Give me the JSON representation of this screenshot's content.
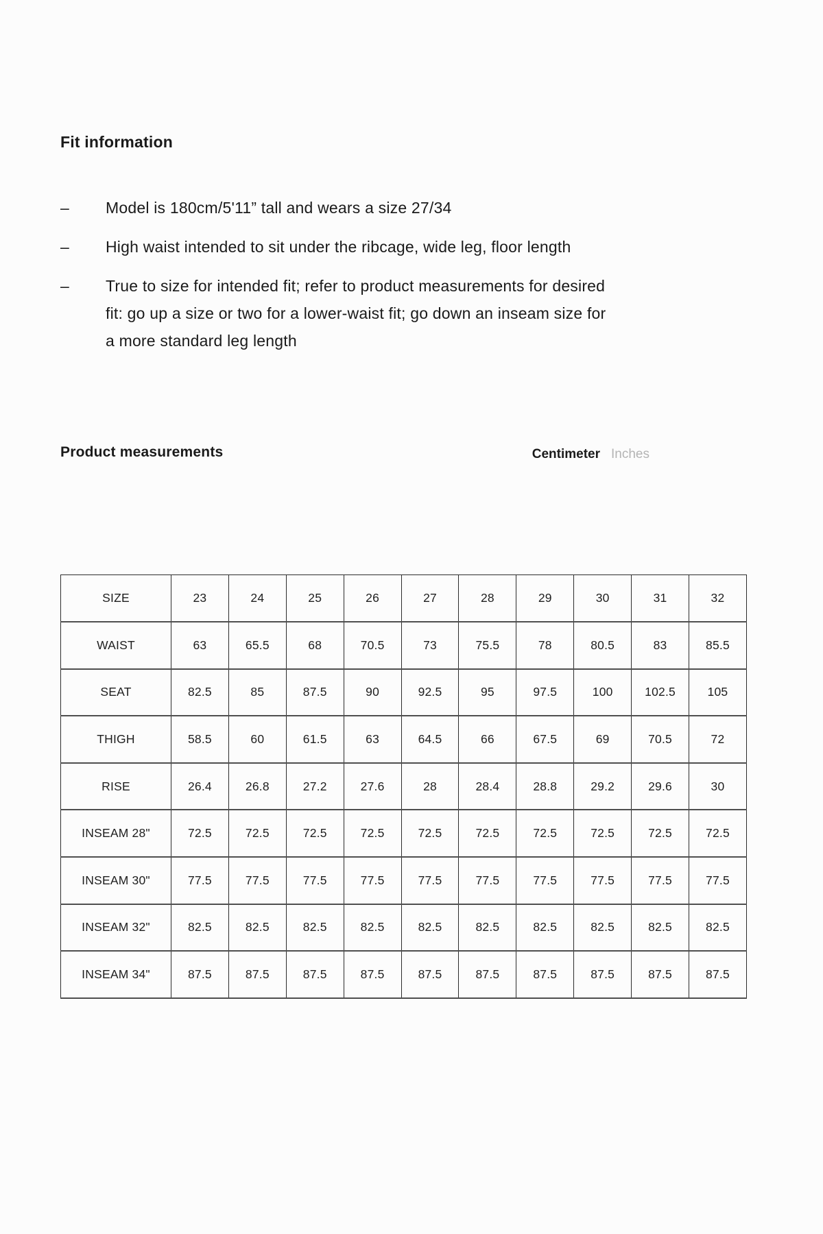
{
  "page": {
    "background": "#fcfcfc",
    "text_color": "#1a1a1a"
  },
  "fit_info": {
    "title": "Fit information",
    "bullet_char": "–",
    "bullets": [
      "Model is 180cm/5'11” tall and wears a size 27/34",
      "High waist intended to sit under the ribcage, wide leg, floor length",
      "True to size for intended fit; refer to product measurements for desired fit: go up a size or two for a lower-waist fit; go down an inseam size for a more standard leg length"
    ]
  },
  "measurements": {
    "title": "Product measurements",
    "unit_toggle": {
      "active_label": "Centimeter",
      "inactive_label": "Inches",
      "active_color": "#1a1a1a",
      "inactive_color": "#b4b4b4"
    },
    "table": {
      "rows": [
        {
          "label": "SIZE",
          "values": [
            "23",
            "24",
            "25",
            "26",
            "27",
            "28",
            "29",
            "30",
            "31",
            "32"
          ]
        },
        {
          "label": "WAIST",
          "values": [
            "63",
            "65.5",
            "68",
            "70.5",
            "73",
            "75.5",
            "78",
            "80.5",
            "83",
            "85.5"
          ]
        },
        {
          "label": "SEAT",
          "values": [
            "82.5",
            "85",
            "87.5",
            "90",
            "92.5",
            "95",
            "97.5",
            "100",
            "102.5",
            "105"
          ]
        },
        {
          "label": "THIGH",
          "values": [
            "58.5",
            "60",
            "61.5",
            "63",
            "64.5",
            "66",
            "67.5",
            "69",
            "70.5",
            "72"
          ]
        },
        {
          "label": "RISE",
          "values": [
            "26.4",
            "26.8",
            "27.2",
            "27.6",
            "28",
            "28.4",
            "28.8",
            "29.2",
            "29.6",
            "30"
          ]
        },
        {
          "label": "INSEAM 28\"",
          "values": [
            "72.5",
            "72.5",
            "72.5",
            "72.5",
            "72.5",
            "72.5",
            "72.5",
            "72.5",
            "72.5",
            "72.5"
          ]
        },
        {
          "label": "INSEAM 30\"",
          "values": [
            "77.5",
            "77.5",
            "77.5",
            "77.5",
            "77.5",
            "77.5",
            "77.5",
            "77.5",
            "77.5",
            "77.5"
          ]
        },
        {
          "label": "INSEAM 32\"",
          "values": [
            "82.5",
            "82.5",
            "82.5",
            "82.5",
            "82.5",
            "82.5",
            "82.5",
            "82.5",
            "82.5",
            "82.5"
          ]
        },
        {
          "label": "INSEAM 34\"",
          "values": [
            "87.5",
            "87.5",
            "87.5",
            "87.5",
            "87.5",
            "87.5",
            "87.5",
            "87.5",
            "87.5",
            "87.5"
          ]
        }
      ]
    }
  }
}
